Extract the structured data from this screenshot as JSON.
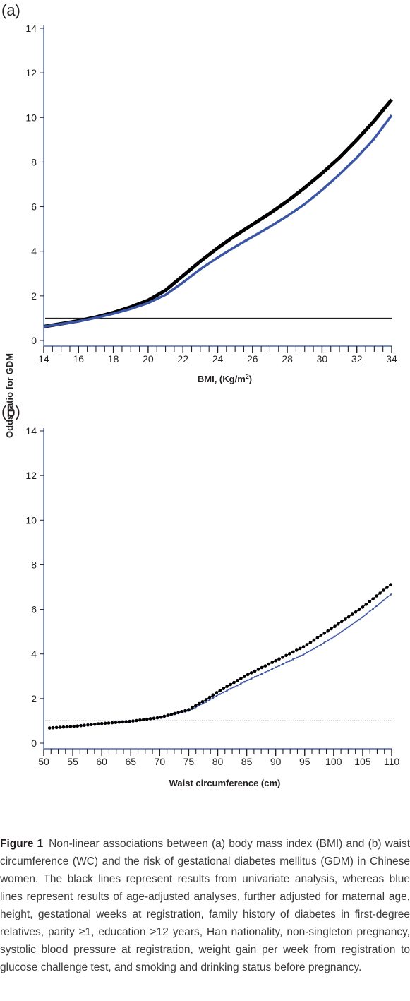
{
  "chart_data": [
    {
      "type": "line",
      "panel_label": "(a)",
      "xlabel": "BMI, (Kg/m",
      "xlabel_sup": "2",
      "xlabel_close": ")",
      "ylabel": "Odds ratio for GDM",
      "xlim": [
        14,
        34
      ],
      "ylim": [
        0,
        14
      ],
      "x_ticks": [
        "14",
        "16",
        "18",
        "20",
        "22",
        "24",
        "26",
        "28",
        "30",
        "32",
        "34"
      ],
      "y_ticks": [
        "0",
        "2",
        "4",
        "6",
        "8",
        "10",
        "12",
        "14"
      ],
      "reference_line": 1,
      "colors": {
        "univariate": "#000000",
        "adjusted": "#3a55a4"
      },
      "series": [
        {
          "x": [
            14,
            15,
            16,
            17,
            18,
            19,
            20,
            21,
            22,
            23,
            24,
            25,
            26,
            27,
            28,
            29,
            30,
            31,
            32,
            33,
            34
          ],
          "values": [
            0.62,
            0.75,
            0.88,
            1.05,
            1.25,
            1.5,
            1.8,
            2.25,
            2.9,
            3.55,
            4.15,
            4.7,
            5.2,
            5.7,
            6.25,
            6.85,
            7.5,
            8.2,
            9.0,
            9.85,
            10.8
          ]
        },
        {
          "x": [
            14,
            15,
            16,
            17,
            18,
            19,
            20,
            21,
            22,
            23,
            24,
            25,
            26,
            27,
            28,
            29,
            30,
            31,
            32,
            33,
            34
          ],
          "values": [
            0.62,
            0.74,
            0.86,
            1.02,
            1.2,
            1.42,
            1.68,
            2.05,
            2.6,
            3.2,
            3.72,
            4.2,
            4.65,
            5.1,
            5.58,
            6.12,
            6.75,
            7.45,
            8.2,
            9.05,
            10.1
          ]
        }
      ]
    },
    {
      "type": "line",
      "panel_label": "(b)",
      "xlabel": "Waist circumference (cm)",
      "ylabel": "Odds ratio for GDM",
      "xlim": [
        50,
        110
      ],
      "ylim": [
        0,
        14
      ],
      "x_ticks": [
        "50",
        "55",
        "60",
        "65",
        "70",
        "75",
        "80",
        "85",
        "90",
        "95",
        "100",
        "105",
        "110"
      ],
      "y_ticks": [
        "0",
        "2",
        "4",
        "6",
        "8",
        "10",
        "12",
        "14"
      ],
      "reference_line": 1,
      "colors": {
        "univariate": "#000000",
        "adjusted": "#3a55a4"
      },
      "series": [
        {
          "x": [
            51,
            55,
            60,
            65,
            70,
            75,
            78,
            80,
            85,
            90,
            95,
            100,
            105,
            110
          ],
          "values": [
            0.68,
            0.75,
            0.88,
            0.98,
            1.15,
            1.5,
            1.95,
            2.3,
            3.05,
            3.7,
            4.35,
            5.2,
            6.1,
            7.15
          ]
        },
        {
          "x": [
            51,
            55,
            60,
            65,
            70,
            75,
            78,
            80,
            85,
            90,
            95,
            100,
            105,
            110
          ],
          "values": [
            0.68,
            0.75,
            0.87,
            0.97,
            1.13,
            1.45,
            1.85,
            2.15,
            2.8,
            3.4,
            4.0,
            4.75,
            5.65,
            6.7
          ]
        }
      ]
    }
  ],
  "caption": {
    "label": "Figure 1",
    "text": "Non-linear associations between (a) body mass index (BMI) and (b) waist circumference (WC) and the risk of gestational diabetes mellitus (GDM) in Chinese women. The black lines represent results from univariate analysis, whereas blue lines represent results of age-adjusted analyses, further adjusted for maternal age, height, gestational weeks at registration, family history of diabetes in first-degree relatives, parity ≥1, education >12 years, Han nationality, non-singleton pregnancy, systolic blood pressure at registration, weight gain per week from registration to glucose challenge test, and smoking and drinking status before pregnancy."
  }
}
